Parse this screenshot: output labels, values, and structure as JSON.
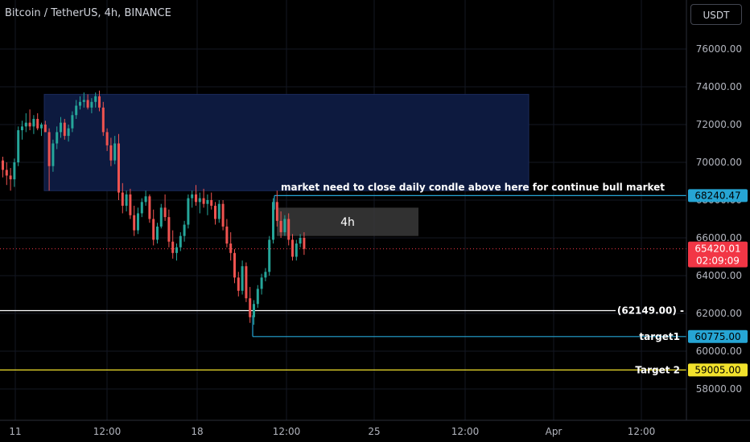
{
  "header": {
    "title": "Bitcoin / TetherUS, 4h, BINANCE",
    "currency_button": "USDT"
  },
  "chart_data": {
    "type": "candlestick",
    "title": "Bitcoin / TetherUS, 4h, BINANCE",
    "yticks": [
      58000,
      60000,
      62000,
      64000,
      66000,
      68000,
      70000,
      72000,
      74000,
      76000
    ],
    "ytick_labels": [
      "58000.00",
      "60000.00",
      "62000.00",
      "64000.00",
      "66000.00",
      "68000.00",
      "70000.00",
      "72000.00",
      "74000.00",
      "76000.00"
    ],
    "xticks": [
      "11",
      "12:00",
      "18",
      "12:00",
      "25",
      "12:00",
      "Apr",
      "12:00"
    ],
    "zone": {
      "price_low": 68500,
      "price_high": 73600,
      "color": "#0d1a3f"
    },
    "small_box": {
      "label": "4h",
      "price_low": 66100,
      "price_high": 67600,
      "color": "#3a3a3a"
    },
    "annotation": "market need to close daily condle above here for continue bull market",
    "levels": [
      {
        "label": "",
        "price": 68240.47,
        "value_label": "68240.47",
        "color": "#26a5d4"
      },
      {
        "label": "(62149.00) -",
        "price": 62149,
        "value_label": "",
        "color": "#ffffff"
      },
      {
        "label": "target1",
        "price": 60775,
        "value_label": "60775.00",
        "color": "#26a5d4"
      },
      {
        "label": "Target 2",
        "price": 59005,
        "value_label": "59005.00",
        "color": "#f2e22c"
      }
    ],
    "last_price": {
      "value_label": "65420.01",
      "price": 65420.01,
      "countdown": "02:09:09",
      "color": "#f23645"
    },
    "candles": [
      [
        70100,
        70300,
        69200,
        69600
      ],
      [
        69600,
        70000,
        68800,
        69300
      ],
      [
        69300,
        69700,
        68500,
        69100
      ],
      [
        69100,
        70200,
        68700,
        70000
      ],
      [
        70000,
        71900,
        69800,
        71700
      ],
      [
        71700,
        72200,
        71200,
        71900
      ],
      [
        71900,
        72600,
        71600,
        72100
      ],
      [
        72100,
        72800,
        71700,
        71900
      ],
      [
        71900,
        72500,
        71500,
        72300
      ],
      [
        72300,
        72600,
        71700,
        71800
      ],
      [
        71800,
        72100,
        71400,
        72000
      ],
      [
        72000,
        72200,
        71600,
        71600
      ],
      [
        71600,
        71800,
        68500,
        69800
      ],
      [
        69800,
        71200,
        69500,
        71000
      ],
      [
        71000,
        71900,
        70700,
        71600
      ],
      [
        71600,
        72400,
        71300,
        72100
      ],
      [
        72100,
        72300,
        71200,
        71400
      ],
      [
        71400,
        72000,
        71100,
        71800
      ],
      [
        71800,
        72700,
        71600,
        72500
      ],
      [
        72500,
        73300,
        72300,
        73000
      ],
      [
        73000,
        73500,
        72800,
        73200
      ],
      [
        73200,
        73700,
        72900,
        73300
      ],
      [
        73300,
        73600,
        72800,
        72900
      ],
      [
        72900,
        73400,
        72600,
        73200
      ],
      [
        73200,
        73700,
        72900,
        73500
      ],
      [
        73500,
        73800,
        72700,
        72900
      ],
      [
        72900,
        73200,
        71400,
        71600
      ],
      [
        71600,
        71800,
        70600,
        70900
      ],
      [
        70900,
        71300,
        69800,
        70100
      ],
      [
        70100,
        71400,
        69900,
        71000
      ],
      [
        71000,
        71500,
        68000,
        68400
      ],
      [
        68400,
        68900,
        67300,
        67700
      ],
      [
        67700,
        68500,
        67400,
        68300
      ],
      [
        68300,
        68600,
        67000,
        67200
      ],
      [
        67200,
        67700,
        66100,
        66400
      ],
      [
        66400,
        67600,
        66200,
        67300
      ],
      [
        67300,
        68100,
        67100,
        67900
      ],
      [
        67900,
        68500,
        67700,
        68200
      ],
      [
        68200,
        68300,
        66800,
        67000
      ],
      [
        67000,
        67500,
        65600,
        65900
      ],
      [
        65900,
        66800,
        65700,
        66600
      ],
      [
        66600,
        67800,
        66500,
        67600
      ],
      [
        67600,
        68300,
        66900,
        67100
      ],
      [
        67100,
        67500,
        65500,
        65800
      ],
      [
        65800,
        66400,
        64900,
        65200
      ],
      [
        65200,
        65700,
        64800,
        65500
      ],
      [
        65500,
        66300,
        65300,
        66100
      ],
      [
        66100,
        66900,
        65800,
        66700
      ],
      [
        66700,
        68300,
        66500,
        68100
      ],
      [
        68100,
        68500,
        67600,
        68300
      ],
      [
        68300,
        68800,
        67700,
        67900
      ],
      [
        67900,
        68400,
        67300,
        68100
      ],
      [
        68100,
        68600,
        67600,
        67800
      ],
      [
        67800,
        68300,
        67200,
        68000
      ],
      [
        68000,
        68400,
        67500,
        67700
      ],
      [
        67700,
        67900,
        66700,
        67000
      ],
      [
        67000,
        68000,
        66800,
        67800
      ],
      [
        67800,
        68000,
        66400,
        66600
      ],
      [
        66600,
        67000,
        65500,
        65700
      ],
      [
        65700,
        66300,
        64800,
        65200
      ],
      [
        65200,
        65400,
        63600,
        63900
      ],
      [
        63900,
        64200,
        62900,
        63200
      ],
      [
        63200,
        64800,
        63000,
        64500
      ],
      [
        64500,
        64700,
        62600,
        62800
      ],
      [
        62800,
        63400,
        61500,
        61800
      ],
      [
        61800,
        62700,
        61400,
        62500
      ],
      [
        62500,
        63500,
        62300,
        63300
      ],
      [
        63300,
        64100,
        63000,
        63900
      ],
      [
        63900,
        64400,
        63700,
        64200
      ],
      [
        64200,
        66100,
        64000,
        65900
      ],
      [
        65900,
        68100,
        65700,
        67900
      ],
      [
        67900,
        68500,
        66600,
        66900
      ],
      [
        66900,
        67400,
        66000,
        66300
      ],
      [
        66300,
        67200,
        66100,
        67000
      ],
      [
        67000,
        67300,
        65600,
        65900
      ],
      [
        65900,
        66200,
        64800,
        65000
      ],
      [
        65000,
        65900,
        64800,
        65700
      ],
      [
        65700,
        66200,
        65500,
        66000
      ],
      [
        66000,
        66300,
        65100,
        65420
      ]
    ]
  }
}
